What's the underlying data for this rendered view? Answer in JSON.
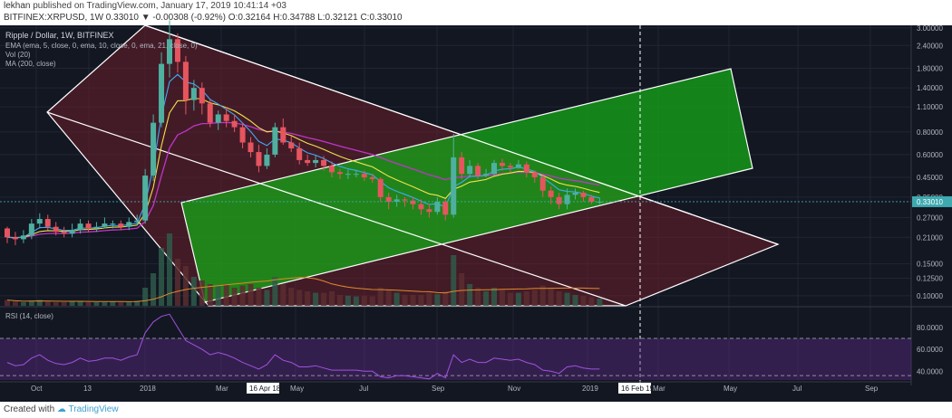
{
  "header": {
    "publisher": "lekhan",
    "published_line": "published on TradingView.com, January 17, 2019 10:41:14 +03",
    "ticker_line": "BITFINEX:XRPUSD, 1W  0.33010  ▼ -0.00308 (-0.92%)  O:0.32164  H:0.34788  L:0.32121  C:0.33010"
  },
  "footer": {
    "created_with": "Created with",
    "brand": "TradingView"
  },
  "colors": {
    "background": "#131722",
    "grid": "#222633",
    "up_candle": "#4fb0a0",
    "down_candle": "#e6555f",
    "ema_fast": "#3fa9f5",
    "ema_slow": "#f2e24a",
    "ma_long": "#c035c8",
    "volume": "#4a3a2a",
    "channel_down_fill": "#6b1f2c",
    "channel_up_fill": "#16a818",
    "channel_line": "#ffffff",
    "rsi_line": "#a052e0",
    "rsi_band": "#5b2a82",
    "price_label_bg": "#3eaab0"
  },
  "chart_data": {
    "type": "candlestick",
    "title": "Ripple / Dollar, 1W, BITFINEX",
    "legend": [
      "EMA (ema, 5, close, 0, ema, 10, close, 0, ema, 21, close, 0)",
      "Vol (20)",
      "MA (200, close)"
    ],
    "price_axis": {
      "scale": "log",
      "ylim": [
        0.088,
        3.1
      ],
      "tick_labels": [
        "3.00000",
        "2.40000",
        "1.80000",
        "1.40000",
        "1.10000",
        "0.80000",
        "0.60000",
        "0.45000",
        "0.35000",
        "0.27000",
        "0.21000",
        "0.15000",
        "0.12500",
        "0.10000"
      ],
      "tick_values": [
        3.0,
        2.4,
        1.8,
        1.4,
        1.1,
        0.8,
        0.6,
        0.45,
        0.35,
        0.27,
        0.21,
        0.15,
        0.125,
        0.1
      ],
      "last_price_label": "0.33010",
      "last_price": 0.3301
    },
    "time_axis": {
      "tick_labels": [
        "Oct",
        "13",
        "2018",
        "Mar",
        "May",
        "Jul",
        "Sep",
        "Nov",
        "2019",
        "Mar",
        "May",
        "Jul",
        "Sep"
      ],
      "highlight_labels": [
        "16 Apr 18",
        "16 Feb 19"
      ],
      "crosshair_label": "16 Feb 19"
    },
    "candles": [
      [
        0.235,
        0.21,
        0.24,
        0.195
      ],
      [
        0.21,
        0.205,
        0.225,
        0.19
      ],
      [
        0.205,
        0.215,
        0.23,
        0.195
      ],
      [
        0.215,
        0.25,
        0.265,
        0.205
      ],
      [
        0.25,
        0.265,
        0.285,
        0.235
      ],
      [
        0.265,
        0.24,
        0.28,
        0.23
      ],
      [
        0.24,
        0.225,
        0.255,
        0.215
      ],
      [
        0.225,
        0.22,
        0.24,
        0.21
      ],
      [
        0.22,
        0.23,
        0.25,
        0.21
      ],
      [
        0.23,
        0.25,
        0.265,
        0.22
      ],
      [
        0.25,
        0.235,
        0.26,
        0.225
      ],
      [
        0.235,
        0.24,
        0.255,
        0.225
      ],
      [
        0.24,
        0.25,
        0.27,
        0.235
      ],
      [
        0.25,
        0.25,
        0.26,
        0.235
      ],
      [
        0.25,
        0.24,
        0.26,
        0.23
      ],
      [
        0.24,
        0.255,
        0.27,
        0.23
      ],
      [
        0.255,
        0.26,
        0.28,
        0.245
      ],
      [
        0.26,
        0.46,
        0.5,
        0.25
      ],
      [
        0.46,
        0.9,
        1.0,
        0.43
      ],
      [
        0.9,
        1.9,
        2.2,
        0.85
      ],
      [
        1.9,
        2.6,
        3.3,
        1.6
      ],
      [
        2.6,
        1.95,
        2.8,
        1.7
      ],
      [
        1.95,
        1.2,
        2.1,
        1.0
      ],
      [
        1.2,
        1.4,
        1.55,
        1.05
      ],
      [
        1.4,
        1.15,
        1.5,
        1.0
      ],
      [
        1.15,
        0.9,
        1.2,
        0.85
      ],
      [
        0.9,
        1.0,
        1.05,
        0.82
      ],
      [
        1.0,
        0.92,
        1.1,
        0.85
      ],
      [
        0.92,
        0.85,
        1.0,
        0.8
      ],
      [
        0.85,
        0.7,
        0.9,
        0.65
      ],
      [
        0.7,
        0.62,
        0.75,
        0.58
      ],
      [
        0.62,
        0.52,
        0.68,
        0.48
      ],
      [
        0.52,
        0.6,
        0.65,
        0.5
      ],
      [
        0.6,
        0.85,
        0.9,
        0.58
      ],
      [
        0.85,
        0.7,
        0.95,
        0.68
      ],
      [
        0.7,
        0.65,
        0.76,
        0.62
      ],
      [
        0.65,
        0.56,
        0.7,
        0.53
      ],
      [
        0.56,
        0.54,
        0.6,
        0.52
      ],
      [
        0.54,
        0.56,
        0.6,
        0.51
      ],
      [
        0.56,
        0.52,
        0.59,
        0.49
      ],
      [
        0.52,
        0.48,
        0.55,
        0.45
      ],
      [
        0.48,
        0.47,
        0.5,
        0.44
      ],
      [
        0.47,
        0.47,
        0.495,
        0.44
      ],
      [
        0.47,
        0.47,
        0.495,
        0.45
      ],
      [
        0.47,
        0.45,
        0.49,
        0.43
      ],
      [
        0.45,
        0.44,
        0.47,
        0.42
      ],
      [
        0.44,
        0.35,
        0.45,
        0.33
      ],
      [
        0.35,
        0.33,
        0.37,
        0.3
      ],
      [
        0.33,
        0.34,
        0.36,
        0.31
      ],
      [
        0.34,
        0.335,
        0.35,
        0.31
      ],
      [
        0.335,
        0.32,
        0.35,
        0.3
      ],
      [
        0.32,
        0.3,
        0.34,
        0.28
      ],
      [
        0.3,
        0.29,
        0.32,
        0.27
      ],
      [
        0.29,
        0.33,
        0.35,
        0.28
      ],
      [
        0.33,
        0.28,
        0.34,
        0.26
      ],
      [
        0.28,
        0.58,
        0.78,
        0.27
      ],
      [
        0.58,
        0.47,
        0.62,
        0.44
      ],
      [
        0.47,
        0.52,
        0.56,
        0.45
      ],
      [
        0.52,
        0.46,
        0.54,
        0.44
      ],
      [
        0.46,
        0.47,
        0.5,
        0.45
      ],
      [
        0.47,
        0.54,
        0.56,
        0.46
      ],
      [
        0.54,
        0.52,
        0.57,
        0.49
      ],
      [
        0.52,
        0.51,
        0.54,
        0.48
      ],
      [
        0.51,
        0.53,
        0.56,
        0.5
      ],
      [
        0.53,
        0.48,
        0.55,
        0.45
      ],
      [
        0.48,
        0.45,
        0.49,
        0.42
      ],
      [
        0.45,
        0.38,
        0.46,
        0.35
      ],
      [
        0.38,
        0.35,
        0.4,
        0.32
      ],
      [
        0.35,
        0.32,
        0.37,
        0.3
      ],
      [
        0.32,
        0.36,
        0.39,
        0.3
      ],
      [
        0.36,
        0.37,
        0.39,
        0.34
      ],
      [
        0.37,
        0.35,
        0.38,
        0.33
      ],
      [
        0.35,
        0.33,
        0.36,
        0.32
      ],
      [
        0.33,
        0.33,
        0.348,
        0.321
      ]
    ],
    "volume_relative": [
      0.08,
      0.06,
      0.05,
      0.07,
      0.08,
      0.06,
      0.05,
      0.05,
      0.06,
      0.06,
      0.05,
      0.05,
      0.05,
      0.06,
      0.05,
      0.05,
      0.07,
      0.25,
      0.45,
      0.8,
      1.0,
      0.65,
      0.55,
      0.4,
      0.35,
      0.3,
      0.28,
      0.3,
      0.25,
      0.28,
      0.3,
      0.25,
      0.22,
      0.4,
      0.3,
      0.25,
      0.22,
      0.2,
      0.18,
      0.18,
      0.2,
      0.15,
      0.14,
      0.13,
      0.14,
      0.13,
      0.25,
      0.22,
      0.18,
      0.15,
      0.15,
      0.15,
      0.18,
      0.16,
      0.2,
      0.7,
      0.45,
      0.3,
      0.25,
      0.2,
      0.25,
      0.22,
      0.18,
      0.18,
      0.2,
      0.22,
      0.28,
      0.25,
      0.2,
      0.18,
      0.15,
      0.14,
      0.12,
      0.1
    ],
    "rsi": {
      "label": "RSI (14, close)",
      "ylim": [
        32,
        98
      ],
      "tick_labels": [
        "80.0000",
        "60.0000",
        "40.0000"
      ],
      "tick_values": [
        80,
        60,
        40
      ],
      "upper_band": 70,
      "lower_band": 30,
      "values": [
        48,
        45,
        46,
        52,
        55,
        50,
        47,
        46,
        48,
        52,
        49,
        50,
        52,
        52,
        50,
        53,
        55,
        75,
        85,
        90,
        92,
        80,
        68,
        64,
        60,
        55,
        57,
        55,
        52,
        48,
        45,
        42,
        46,
        55,
        50,
        48,
        44,
        44,
        45,
        43,
        41,
        41,
        41,
        41,
        40,
        40,
        35,
        34,
        36,
        36,
        35,
        34,
        33,
        38,
        34,
        55,
        48,
        51,
        48,
        48,
        52,
        51,
        50,
        51,
        48,
        46,
        41,
        40,
        38,
        44,
        45,
        43,
        42,
        42
      ]
    }
  }
}
